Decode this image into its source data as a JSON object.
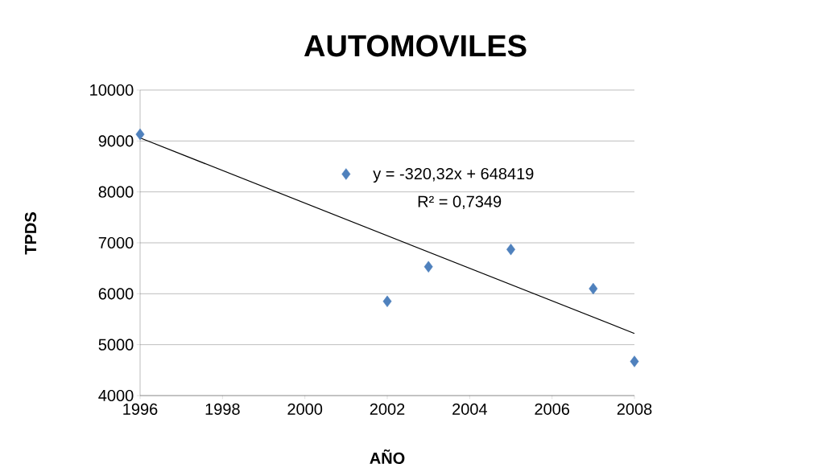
{
  "chart_data": {
    "type": "scatter",
    "title": "AUTOMOVILES",
    "xlabel": "AÑO",
    "ylabel": "TPDS",
    "series": [
      {
        "color": "#4f81bd",
        "marker": "diamond",
        "x": [
          1996,
          2001,
          2002,
          2003,
          2005,
          2007,
          2008
        ],
        "values": [
          9130,
          8350,
          5850,
          6530,
          6870,
          6100,
          4670
        ]
      },
      {
        "type": "line",
        "color": "#000000",
        "marker": "none",
        "x": [
          1996,
          2008
        ],
        "values": [
          9060,
          5220
        ]
      }
    ],
    "annotations": [
      "y = -320,32x + 648419",
      "R² = 0,7349"
    ],
    "xlim": [
      1996,
      2008
    ],
    "xticks": [
      1996,
      1998,
      2000,
      2002,
      2004,
      2006,
      2008
    ],
    "ylim": [
      4000,
      10000
    ],
    "yticks": [
      4000,
      5000,
      6000,
      7000,
      8000,
      9000,
      10000
    ],
    "grid": "y"
  }
}
